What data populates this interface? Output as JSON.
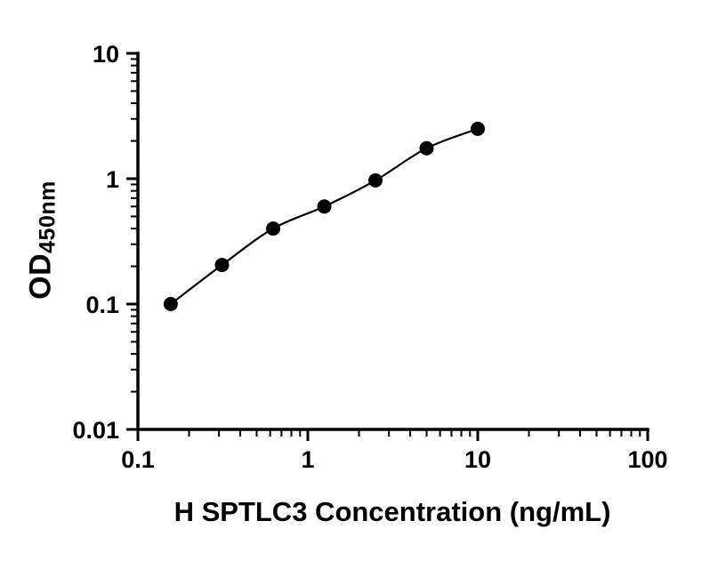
{
  "chart_data": {
    "type": "scatter",
    "xlabel": "H SPTLC3 Concentration (ng/mL)",
    "ylabel": "OD",
    "ylabel_sub": "450nm",
    "xscale": "log",
    "yscale": "log",
    "xlim": [
      0.1,
      100
    ],
    "ylim": [
      0.01,
      10
    ],
    "x_ticks": [
      0.1,
      1,
      10,
      100
    ],
    "x_tick_labels": [
      "0.1",
      "1",
      "10",
      "100"
    ],
    "y_ticks": [
      0.01,
      0.1,
      1,
      10
    ],
    "y_tick_labels": [
      "0.01",
      "0.1",
      "1",
      "10"
    ],
    "grid": false,
    "legend": "none",
    "x": [
      0.156,
      0.3125,
      0.625,
      1.25,
      2.5,
      5,
      10
    ],
    "y": [
      0.1,
      0.205,
      0.4,
      0.6,
      0.97,
      1.75,
      2.5
    ],
    "marker": "filled-circle",
    "marker_color": "#000000",
    "line_color": "#000000",
    "axis_color": "#000000"
  }
}
